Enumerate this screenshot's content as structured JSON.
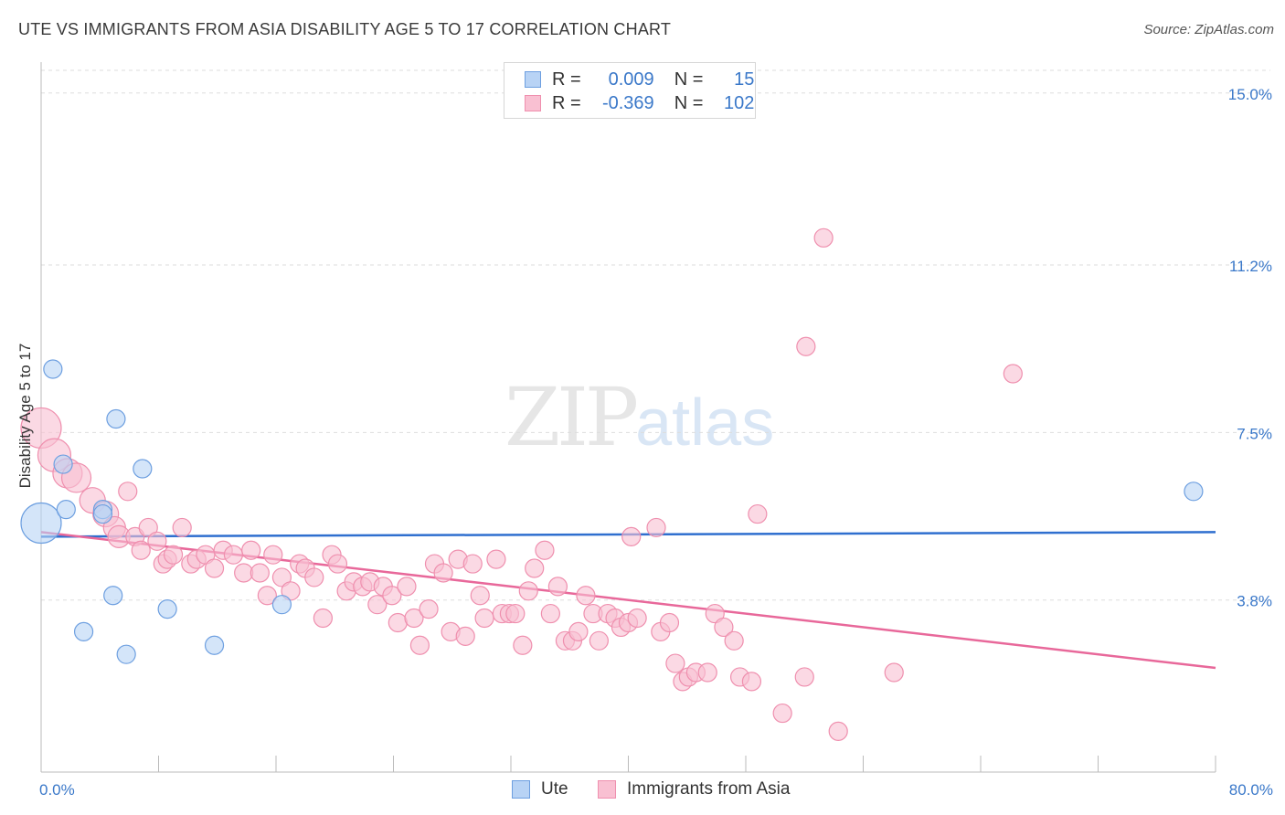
{
  "title": "UTE VS IMMIGRANTS FROM ASIA DISABILITY AGE 5 TO 17 CORRELATION CHART",
  "source": "Source: ZipAtlas.com",
  "watermark": {
    "zip": "ZIP",
    "atlas": "atlas"
  },
  "legend": {
    "r_label": "R =",
    "n_label": "N =",
    "rows": [
      {
        "r": "0.009",
        "n": "15"
      },
      {
        "r": "-0.369",
        "n": "102"
      }
    ]
  },
  "colors": {
    "ute_fill": "#b8d3f5",
    "ute_stroke": "#6d9fe0",
    "ute_line": "#2f6fcf",
    "asia_fill": "#f9c0d2",
    "asia_stroke": "#ef8fae",
    "asia_line": "#e8689a",
    "tick_label": "#3a78c9",
    "grid": "#dddddd"
  },
  "chart_data": {
    "type": "scatter",
    "title": "UTE VS IMMIGRANTS FROM ASIA DISABILITY AGE 5 TO 17 CORRELATION CHART",
    "xlabel": "",
    "ylabel": "Disability Age 5 to 17",
    "xlim": [
      0,
      80
    ],
    "ylim": [
      0,
      15.5
    ],
    "x_tick_labels": [
      "0.0%",
      "80.0%"
    ],
    "y_ticks": [
      3.8,
      7.5,
      11.2,
      15.0
    ],
    "y_tick_labels": [
      "3.8%",
      "7.5%",
      "11.2%",
      "15.0%"
    ],
    "legend_position": "top-center",
    "series": [
      {
        "name": "Ute",
        "r": 0.009,
        "n": 15,
        "trend": {
          "x": [
            0,
            80
          ],
          "y": [
            5.2,
            5.3
          ]
        },
        "points": [
          {
            "x": 0.0,
            "y": 5.5,
            "s": 22
          },
          {
            "x": 0.8,
            "y": 8.9,
            "s": 10
          },
          {
            "x": 1.5,
            "y": 6.8,
            "s": 10
          },
          {
            "x": 1.7,
            "y": 5.8,
            "s": 10
          },
          {
            "x": 2.9,
            "y": 3.1,
            "s": 10
          },
          {
            "x": 4.2,
            "y": 5.8,
            "s": 10
          },
          {
            "x": 4.2,
            "y": 5.7,
            "s": 10
          },
          {
            "x": 4.9,
            "y": 3.9,
            "s": 10
          },
          {
            "x": 5.1,
            "y": 7.8,
            "s": 10
          },
          {
            "x": 5.8,
            "y": 2.6,
            "s": 10
          },
          {
            "x": 6.9,
            "y": 6.7,
            "s": 10
          },
          {
            "x": 8.6,
            "y": 3.6,
            "s": 10
          },
          {
            "x": 11.8,
            "y": 2.8,
            "s": 10
          },
          {
            "x": 16.4,
            "y": 3.7,
            "s": 10
          },
          {
            "x": 78.5,
            "y": 6.2,
            "s": 10
          }
        ]
      },
      {
        "name": "Immigrants from Asia",
        "r": -0.369,
        "n": 102,
        "trend": {
          "x": [
            0,
            80
          ],
          "y": [
            5.3,
            2.3
          ]
        },
        "points": [
          {
            "x": 0.0,
            "y": 7.6,
            "s": 22
          },
          {
            "x": 0.9,
            "y": 7.0,
            "s": 18
          },
          {
            "x": 1.8,
            "y": 6.6,
            "s": 16
          },
          {
            "x": 2.4,
            "y": 6.5,
            "s": 16
          },
          {
            "x": 3.5,
            "y": 6.0,
            "s": 14
          },
          {
            "x": 4.4,
            "y": 5.7,
            "s": 14
          },
          {
            "x": 5.0,
            "y": 5.4,
            "s": 12
          },
          {
            "x": 5.3,
            "y": 5.2,
            "s": 12
          },
          {
            "x": 5.9,
            "y": 6.2,
            "s": 10
          },
          {
            "x": 6.4,
            "y": 5.2,
            "s": 10
          },
          {
            "x": 6.8,
            "y": 4.9,
            "s": 10
          },
          {
            "x": 7.3,
            "y": 5.4,
            "s": 10
          },
          {
            "x": 7.9,
            "y": 5.1,
            "s": 10
          },
          {
            "x": 8.3,
            "y": 4.6,
            "s": 10
          },
          {
            "x": 8.6,
            "y": 4.7,
            "s": 10
          },
          {
            "x": 9.0,
            "y": 4.8,
            "s": 10
          },
          {
            "x": 9.6,
            "y": 5.4,
            "s": 10
          },
          {
            "x": 10.2,
            "y": 4.6,
            "s": 10
          },
          {
            "x": 10.6,
            "y": 4.7,
            "s": 10
          },
          {
            "x": 11.2,
            "y": 4.8,
            "s": 10
          },
          {
            "x": 11.8,
            "y": 4.5,
            "s": 10
          },
          {
            "x": 12.4,
            "y": 4.9,
            "s": 10
          },
          {
            "x": 13.1,
            "y": 4.8,
            "s": 10
          },
          {
            "x": 13.8,
            "y": 4.4,
            "s": 10
          },
          {
            "x": 14.3,
            "y": 4.9,
            "s": 10
          },
          {
            "x": 14.9,
            "y": 4.4,
            "s": 10
          },
          {
            "x": 15.4,
            "y": 3.9,
            "s": 10
          },
          {
            "x": 15.8,
            "y": 4.8,
            "s": 10
          },
          {
            "x": 16.4,
            "y": 4.3,
            "s": 10
          },
          {
            "x": 17.0,
            "y": 4.0,
            "s": 10
          },
          {
            "x": 17.6,
            "y": 4.6,
            "s": 10
          },
          {
            "x": 18.0,
            "y": 4.5,
            "s": 10
          },
          {
            "x": 18.6,
            "y": 4.3,
            "s": 10
          },
          {
            "x": 19.2,
            "y": 3.4,
            "s": 10
          },
          {
            "x": 19.8,
            "y": 4.8,
            "s": 10
          },
          {
            "x": 20.2,
            "y": 4.6,
            "s": 10
          },
          {
            "x": 20.8,
            "y": 4.0,
            "s": 10
          },
          {
            "x": 21.3,
            "y": 4.2,
            "s": 10
          },
          {
            "x": 21.9,
            "y": 4.1,
            "s": 10
          },
          {
            "x": 22.4,
            "y": 4.2,
            "s": 10
          },
          {
            "x": 22.9,
            "y": 3.7,
            "s": 10
          },
          {
            "x": 23.3,
            "y": 4.1,
            "s": 10
          },
          {
            "x": 23.9,
            "y": 3.9,
            "s": 10
          },
          {
            "x": 24.3,
            "y": 3.3,
            "s": 10
          },
          {
            "x": 24.9,
            "y": 4.1,
            "s": 10
          },
          {
            "x": 25.4,
            "y": 3.4,
            "s": 10
          },
          {
            "x": 25.8,
            "y": 2.8,
            "s": 10
          },
          {
            "x": 26.4,
            "y": 3.6,
            "s": 10
          },
          {
            "x": 26.8,
            "y": 4.6,
            "s": 10
          },
          {
            "x": 27.4,
            "y": 4.4,
            "s": 10
          },
          {
            "x": 27.9,
            "y": 3.1,
            "s": 10
          },
          {
            "x": 28.4,
            "y": 4.7,
            "s": 10
          },
          {
            "x": 28.9,
            "y": 3.0,
            "s": 10
          },
          {
            "x": 29.4,
            "y": 4.6,
            "s": 10
          },
          {
            "x": 29.9,
            "y": 3.9,
            "s": 10
          },
          {
            "x": 30.2,
            "y": 3.4,
            "s": 10
          },
          {
            "x": 31.0,
            "y": 4.7,
            "s": 10
          },
          {
            "x": 31.4,
            "y": 3.5,
            "s": 10
          },
          {
            "x": 31.9,
            "y": 3.5,
            "s": 10
          },
          {
            "x": 32.3,
            "y": 3.5,
            "s": 10
          },
          {
            "x": 32.8,
            "y": 2.8,
            "s": 10
          },
          {
            "x": 33.2,
            "y": 4.0,
            "s": 10
          },
          {
            "x": 33.6,
            "y": 4.5,
            "s": 10
          },
          {
            "x": 34.3,
            "y": 4.9,
            "s": 10
          },
          {
            "x": 34.7,
            "y": 3.5,
            "s": 10
          },
          {
            "x": 35.2,
            "y": 4.1,
            "s": 10
          },
          {
            "x": 35.7,
            "y": 2.9,
            "s": 10
          },
          {
            "x": 36.2,
            "y": 2.9,
            "s": 10
          },
          {
            "x": 36.6,
            "y": 3.1,
            "s": 10
          },
          {
            "x": 37.1,
            "y": 3.9,
            "s": 10
          },
          {
            "x": 37.6,
            "y": 3.5,
            "s": 10
          },
          {
            "x": 38.0,
            "y": 2.9,
            "s": 10
          },
          {
            "x": 38.6,
            "y": 3.5,
            "s": 10
          },
          {
            "x": 39.1,
            "y": 3.4,
            "s": 10
          },
          {
            "x": 39.5,
            "y": 3.2,
            "s": 10
          },
          {
            "x": 40.0,
            "y": 3.3,
            "s": 10
          },
          {
            "x": 40.6,
            "y": 3.4,
            "s": 10
          },
          {
            "x": 40.2,
            "y": 5.2,
            "s": 10
          },
          {
            "x": 41.9,
            "y": 5.4,
            "s": 10
          },
          {
            "x": 42.2,
            "y": 3.1,
            "s": 10
          },
          {
            "x": 42.8,
            "y": 3.3,
            "s": 10
          },
          {
            "x": 43.2,
            "y": 2.4,
            "s": 10
          },
          {
            "x": 43.7,
            "y": 2.0,
            "s": 10
          },
          {
            "x": 44.1,
            "y": 2.1,
            "s": 10
          },
          {
            "x": 44.6,
            "y": 2.2,
            "s": 10
          },
          {
            "x": 45.4,
            "y": 2.2,
            "s": 10
          },
          {
            "x": 45.9,
            "y": 3.5,
            "s": 10
          },
          {
            "x": 46.5,
            "y": 3.2,
            "s": 10
          },
          {
            "x": 47.2,
            "y": 2.9,
            "s": 10
          },
          {
            "x": 47.6,
            "y": 2.1,
            "s": 10
          },
          {
            "x": 48.4,
            "y": 2.0,
            "s": 10
          },
          {
            "x": 48.8,
            "y": 5.7,
            "s": 10
          },
          {
            "x": 50.5,
            "y": 1.3,
            "s": 10
          },
          {
            "x": 52.0,
            "y": 2.1,
            "s": 10
          },
          {
            "x": 52.1,
            "y": 9.4,
            "s": 10
          },
          {
            "x": 53.3,
            "y": 11.8,
            "s": 10
          },
          {
            "x": 54.3,
            "y": 0.9,
            "s": 10
          },
          {
            "x": 58.1,
            "y": 2.2,
            "s": 10
          },
          {
            "x": 66.2,
            "y": 8.8,
            "s": 10
          }
        ]
      }
    ]
  }
}
